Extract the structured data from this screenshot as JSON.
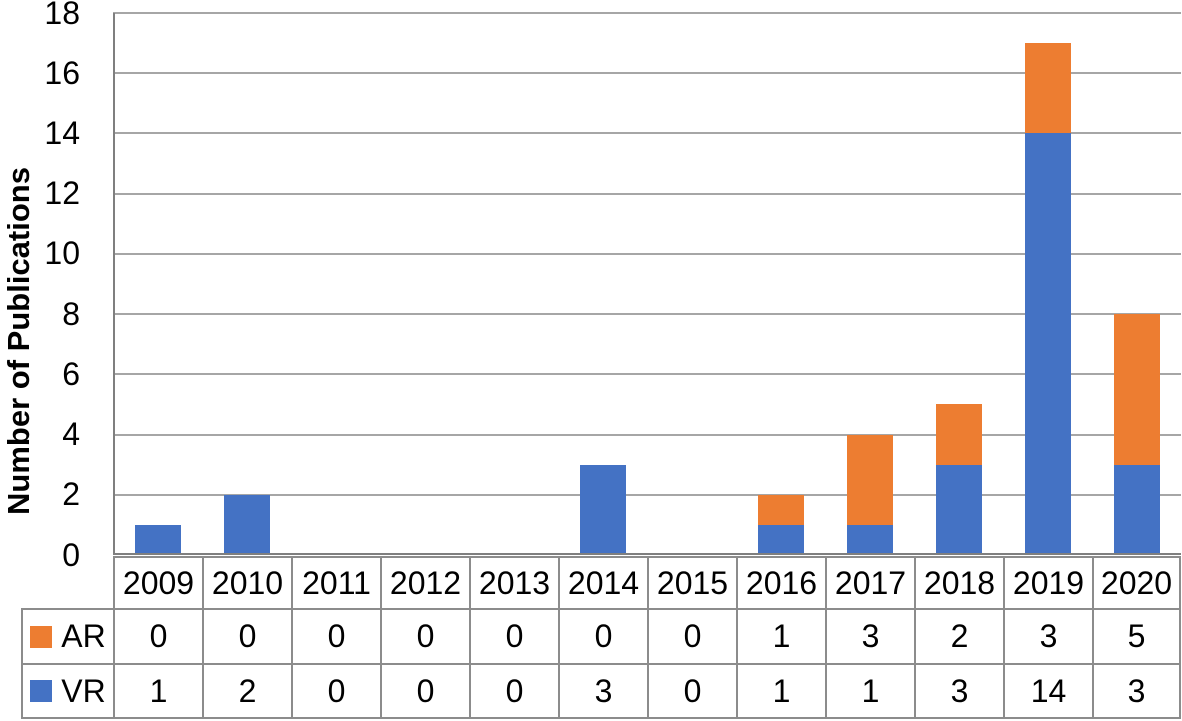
{
  "chart_data": {
    "type": "bar",
    "stacked": true,
    "title": "",
    "xlabel": "",
    "ylabel": "Number of Publications",
    "categories": [
      "2009",
      "2010",
      "2011",
      "2012",
      "2013",
      "2014",
      "2015",
      "2016",
      "2017",
      "2018",
      "2019",
      "2020"
    ],
    "series": [
      {
        "name": "AR",
        "color": "#ED7D31",
        "values": [
          0,
          0,
          0,
          0,
          0,
          0,
          0,
          1,
          3,
          2,
          3,
          5
        ]
      },
      {
        "name": "VR",
        "color": "#4472C4",
        "values": [
          1,
          2,
          0,
          0,
          0,
          3,
          0,
          1,
          1,
          3,
          14,
          3
        ]
      }
    ],
    "stack_order_bottom_to_top": [
      "VR",
      "AR"
    ],
    "ylim": [
      0,
      18
    ],
    "yticks": [
      0,
      2,
      4,
      6,
      8,
      10,
      12,
      14,
      16,
      18
    ],
    "grid": true,
    "legend_position": "data-table-left",
    "data_table_shown": true
  },
  "colors": {
    "ar_orange": "#ED7D31",
    "vr_blue": "#4472C4",
    "gridline": "#A6A6A6",
    "axis": "#7F7F7F",
    "table_border": "#8C8C8C",
    "text": "#000000"
  }
}
